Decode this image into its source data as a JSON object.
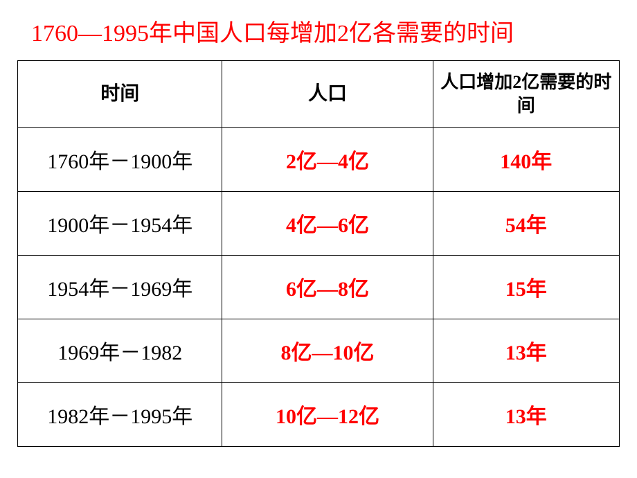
{
  "title": "1760—1995年中国人口每增加2亿各需要的时间",
  "title_color": "#ff0000",
  "background_color": "#ffffff",
  "border_color": "#000000",
  "data_color": "#ff0000",
  "time_color": "#000000",
  "header_color": "#000000",
  "title_fontsize": 34,
  "header_fontsize": 28,
  "cell_fontsize": 30,
  "table": {
    "columns": [
      "时间",
      "人口",
      "人口增加2亿需要的时间"
    ],
    "col_widths": [
      "34%",
      "35%",
      "31%"
    ],
    "rows": [
      {
        "time": "1760年－1900年",
        "population": "2亿—4亿",
        "years": "140年"
      },
      {
        "time": "1900年－1954年",
        "population": "4亿—6亿",
        "years": "54年"
      },
      {
        "time": "1954年－1969年",
        "population": "6亿—8亿",
        "years": "15年"
      },
      {
        "time": "1969年－1982",
        "population": "8亿—10亿",
        "years": "13年"
      },
      {
        "time": "1982年－1995年",
        "population": "10亿—12亿",
        "years": "13年"
      }
    ]
  }
}
